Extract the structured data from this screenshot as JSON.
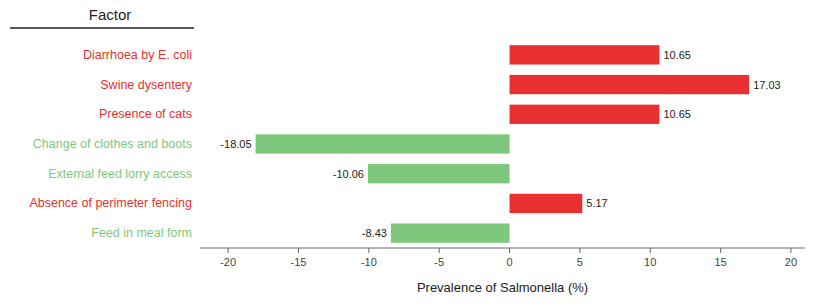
{
  "chart_data": {
    "type": "bar",
    "orientation": "horizontal",
    "title": "Factor",
    "x_label": "Prevalence of Salmonella (%)",
    "categories": [
      "Feed in meal form",
      "Absence of perimeter fencing",
      "External feed lorry access",
      "Change of clothes and boots",
      "Presence of cats",
      "Swine dysentery",
      "Diarrhoea by E. coli"
    ],
    "values": [
      -8.43,
      5.17,
      -10.06,
      -18.05,
      10.65,
      17.03,
      10.65
    ],
    "colors": [
      "#7dc87d",
      "#e83030",
      "#7dc87d",
      "#7dc87d",
      "#e83030",
      "#e83030",
      "#e83030"
    ],
    "xlim": [
      -22,
      21
    ],
    "xticks": [
      -20,
      -15,
      -10,
      -5,
      0,
      5,
      10,
      15,
      20
    ],
    "data_labels": true,
    "grid": false
  }
}
